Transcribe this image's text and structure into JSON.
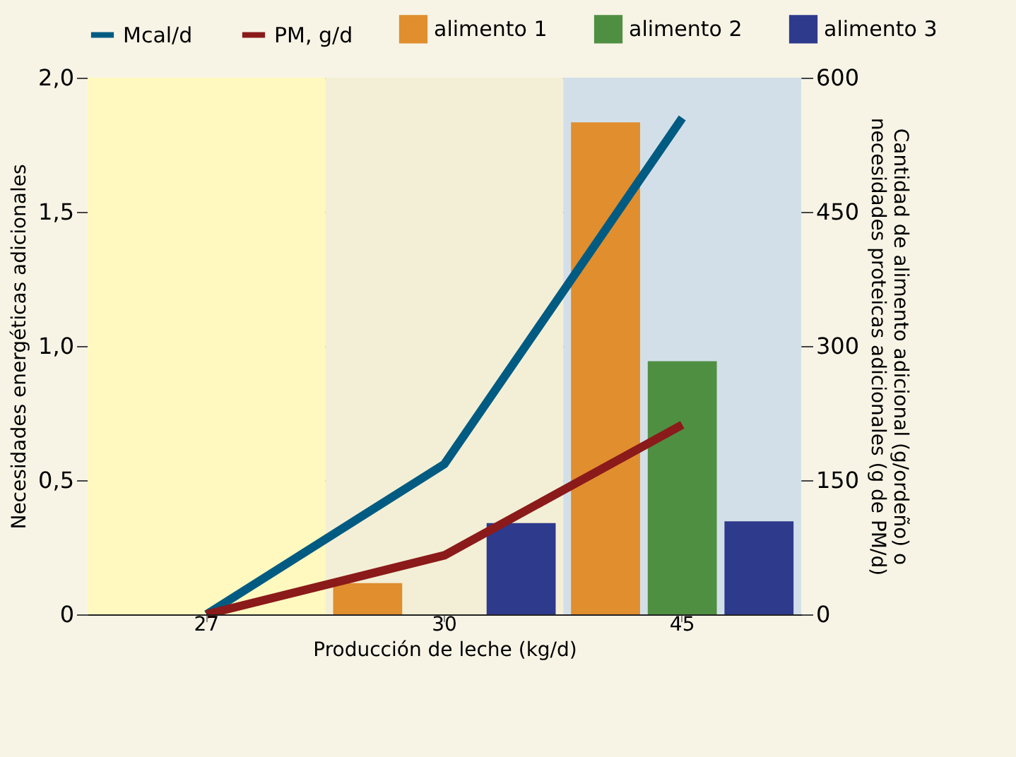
{
  "chart_data": {
    "type": "bar",
    "xlabel": "Producción de leche (kg/d)",
    "ylabel": "Necesidades energéticas adicionales",
    "y2label": "Cantidad de alimento adicional (g/ordeño) o necesidades proteicas adicionales (g de PM/d)",
    "categories": [
      "27",
      "30",
      "45"
    ],
    "series": [
      {
        "name": "Mcal/d",
        "type": "line",
        "color": "#005b82",
        "values": [
          0,
          0.56,
          1.85
        ]
      },
      {
        "name": "PM, g/d",
        "type": "line",
        "axis": "y2",
        "color": "#8b1a1a",
        "values": [
          0,
          66,
          212
        ]
      },
      {
        "name": "alimento 1",
        "color": "#e08e2e",
        "axis": "y2",
        "values": [
          null,
          35,
          550
        ]
      },
      {
        "name": "alimento 2",
        "color": "#4f8f42",
        "axis": "y2",
        "values": [
          null,
          null,
          283
        ]
      },
      {
        "name": "alimento 3",
        "color": "#2e3a8c",
        "axis": "y2",
        "values": [
          null,
          102,
          104
        ]
      }
    ],
    "ylim": [
      0,
      2
    ],
    "yticks": [
      {
        "value": 0,
        "label": "0"
      },
      {
        "value": 0.5,
        "label": "0,5"
      },
      {
        "value": 1,
        "label": "1,0"
      },
      {
        "value": 1.5,
        "label": "1,5"
      },
      {
        "value": 2,
        "label": "2,0"
      }
    ],
    "y2lim": [
      0,
      600
    ],
    "y2ticks": [
      0,
      150,
      300,
      450,
      600
    ],
    "bands": [
      {
        "axis": "x",
        "from": "27",
        "to": "27",
        "color": "#fff9c0"
      },
      {
        "axis": "x",
        "from": "30",
        "to": "30",
        "color": "#f3efd6"
      },
      {
        "axis": "x",
        "from": "45",
        "to": "45",
        "color": "#d3dfe8"
      }
    ],
    "grid": "y",
    "legend": "top"
  }
}
